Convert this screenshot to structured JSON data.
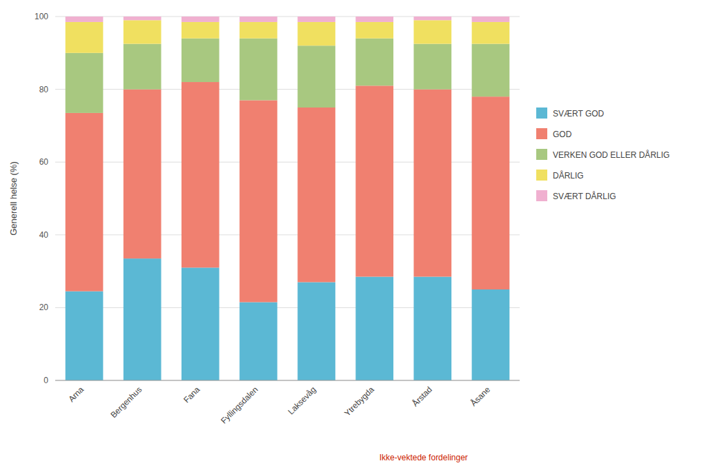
{
  "chart_data": {
    "type": "bar",
    "stacked": true,
    "categories": [
      "Arna",
      "Bergenhus",
      "Fana",
      "Fyllingsdalen",
      "Laksevåg",
      "Ytrebygda",
      "Årstad",
      "Åsane"
    ],
    "series": [
      {
        "name": "SVÆRT GOD",
        "color": "#5BB8D4",
        "values": [
          24.5,
          33.5,
          31.0,
          21.5,
          27.0,
          28.5,
          28.5,
          25.0
        ]
      },
      {
        "name": "GOD",
        "color": "#F08070",
        "values": [
          49.0,
          46.5,
          51.0,
          55.5,
          48.0,
          52.5,
          51.5,
          53.0
        ]
      },
      {
        "name": "VERKEN GOD ELLER DÅRLIG",
        "color": "#A8C880",
        "values": [
          16.5,
          12.5,
          12.0,
          17.0,
          17.0,
          13.0,
          12.5,
          14.5
        ]
      },
      {
        "name": "DÅRLIG",
        "color": "#F0E060",
        "values": [
          8.5,
          6.5,
          4.5,
          4.5,
          6.5,
          4.5,
          6.5,
          6.0
        ]
      },
      {
        "name": "SVÆRT DÅRLIG",
        "color": "#F0B0D0",
        "values": [
          1.5,
          1.0,
          1.5,
          1.5,
          1.5,
          1.5,
          1.0,
          1.5
        ]
      }
    ],
    "ylabel": "Generell helse (%)",
    "annotation": "Ikke-vektede fordelinger",
    "ylim": [
      0,
      100
    ],
    "yticks": [
      0,
      20,
      40,
      60,
      80,
      100
    ],
    "grid": true,
    "legend": "right"
  }
}
